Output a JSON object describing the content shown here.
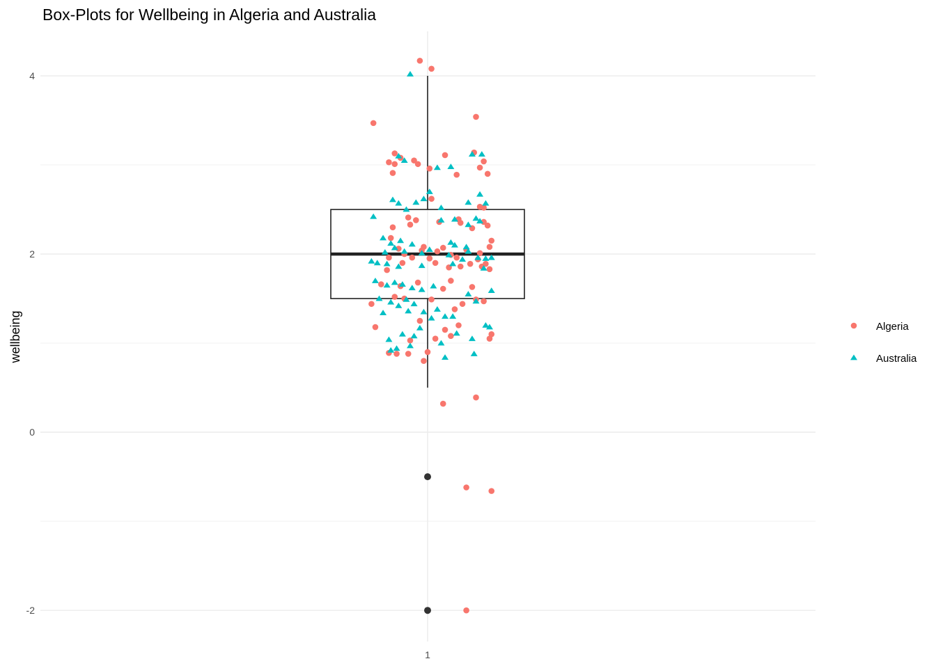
{
  "chart_data": {
    "type": "box",
    "title": "Box-Plots for Wellbeing in Algeria and Australia",
    "xlabel": "",
    "ylabel": "wellbeing",
    "x_tick_labels": [
      "1"
    ],
    "y_ticks": [
      -2,
      0,
      2,
      4
    ],
    "ylim": [
      -2.35,
      4.5
    ],
    "grid": true,
    "legend_position": "right",
    "box": {
      "q1": 1.5,
      "median": 2.0,
      "q3": 2.5,
      "whisker_low": 0.5,
      "whisker_high": 4.0,
      "outliers": [
        -0.5,
        -2.0
      ]
    },
    "series": [
      {
        "name": "Algeria",
        "color": "#F8766D",
        "shape": "circle",
        "points": [
          [
            0.96,
            4.17
          ],
          [
            1.02,
            4.08
          ],
          [
            0.72,
            3.47
          ],
          [
            1.25,
            3.54
          ],
          [
            0.83,
            3.13
          ],
          [
            0.86,
            3.08
          ],
          [
            0.8,
            3.03
          ],
          [
            0.83,
            3.01
          ],
          [
            0.93,
            3.05
          ],
          [
            0.95,
            3.01
          ],
          [
            1.01,
            2.96
          ],
          [
            1.09,
            3.11
          ],
          [
            1.24,
            3.14
          ],
          [
            1.29,
            3.04
          ],
          [
            1.27,
            2.97
          ],
          [
            1.31,
            2.9
          ],
          [
            0.82,
            2.91
          ],
          [
            1.15,
            2.89
          ],
          [
            1.02,
            2.62
          ],
          [
            1.27,
            2.53
          ],
          [
            1.29,
            2.52
          ],
          [
            0.82,
            2.3
          ],
          [
            0.9,
            2.41
          ],
          [
            0.91,
            2.33
          ],
          [
            0.94,
            2.38
          ],
          [
            1.06,
            2.36
          ],
          [
            1.16,
            2.39
          ],
          [
            1.17,
            2.35
          ],
          [
            1.23,
            2.29
          ],
          [
            1.29,
            2.36
          ],
          [
            1.31,
            2.32
          ],
          [
            1.33,
            2.15
          ],
          [
            0.81,
            2.18
          ],
          [
            0.85,
            2.06
          ],
          [
            0.98,
            2.08
          ],
          [
            1.05,
            2.03
          ],
          [
            1.08,
            2.07
          ],
          [
            1.12,
            1.99
          ],
          [
            1.2,
            2.05
          ],
          [
            1.27,
            2.01
          ],
          [
            1.32,
            2.08
          ],
          [
            0.8,
            1.96
          ],
          [
            0.88,
            2.0
          ],
          [
            0.92,
            1.96
          ],
          [
            0.97,
            2.04
          ],
          [
            1.01,
            1.95
          ],
          [
            1.15,
            1.96
          ],
          [
            1.26,
            1.94
          ],
          [
            0.79,
            1.82
          ],
          [
            0.87,
            1.9
          ],
          [
            1.04,
            1.9
          ],
          [
            1.11,
            1.85
          ],
          [
            1.17,
            1.86
          ],
          [
            1.22,
            1.89
          ],
          [
            1.28,
            1.86
          ],
          [
            1.3,
            1.89
          ],
          [
            1.32,
            1.83
          ],
          [
            0.76,
            1.66
          ],
          [
            0.86,
            1.64
          ],
          [
            0.95,
            1.68
          ],
          [
            1.08,
            1.61
          ],
          [
            1.12,
            1.7
          ],
          [
            1.23,
            1.63
          ],
          [
            0.71,
            1.44
          ],
          [
            0.83,
            1.52
          ],
          [
            0.88,
            1.5
          ],
          [
            1.02,
            1.49
          ],
          [
            1.14,
            1.38
          ],
          [
            1.18,
            1.44
          ],
          [
            1.25,
            1.49
          ],
          [
            1.29,
            1.47
          ],
          [
            0.73,
            1.18
          ],
          [
            0.96,
            1.25
          ],
          [
            1.09,
            1.15
          ],
          [
            1.16,
            1.2
          ],
          [
            1.32,
            1.05
          ],
          [
            1.33,
            1.1
          ],
          [
            0.91,
            1.03
          ],
          [
            1.04,
            1.05
          ],
          [
            1.12,
            1.08
          ],
          [
            0.8,
            0.89
          ],
          [
            0.84,
            0.88
          ],
          [
            0.9,
            0.88
          ],
          [
            0.98,
            0.8
          ],
          [
            1.0,
            0.9
          ],
          [
            1.08,
            0.32
          ],
          [
            1.25,
            0.39
          ],
          [
            1.2,
            -0.62
          ],
          [
            1.33,
            -0.66
          ],
          [
            1.2,
            -2.0
          ]
        ]
      },
      {
        "name": "Australia",
        "color": "#00BFC4",
        "shape": "triangle",
        "points": [
          [
            0.91,
            4.02
          ],
          [
            0.85,
            3.1
          ],
          [
            0.88,
            3.05
          ],
          [
            1.23,
            3.12
          ],
          [
            1.28,
            3.12
          ],
          [
            1.05,
            2.97
          ],
          [
            1.12,
            2.98
          ],
          [
            0.94,
            2.58
          ],
          [
            0.98,
            2.62
          ],
          [
            1.01,
            2.7
          ],
          [
            1.07,
            2.52
          ],
          [
            0.82,
            2.61
          ],
          [
            0.85,
            2.57
          ],
          [
            0.89,
            2.5
          ],
          [
            1.21,
            2.58
          ],
          [
            1.27,
            2.67
          ],
          [
            1.3,
            2.57
          ],
          [
            0.72,
            2.42
          ],
          [
            1.07,
            2.38
          ],
          [
            1.14,
            2.39
          ],
          [
            1.21,
            2.33
          ],
          [
            1.25,
            2.4
          ],
          [
            1.27,
            2.37
          ],
          [
            0.77,
            2.18
          ],
          [
            0.81,
            2.12
          ],
          [
            0.86,
            2.15
          ],
          [
            0.92,
            2.11
          ],
          [
            1.01,
            2.05
          ],
          [
            1.12,
            2.13
          ],
          [
            1.14,
            2.1
          ],
          [
            1.2,
            2.08
          ],
          [
            0.78,
            2.02
          ],
          [
            0.83,
            2.07
          ],
          [
            0.88,
            2.03
          ],
          [
            0.97,
            2.01
          ],
          [
            1.11,
            1.99
          ],
          [
            1.21,
            2.03
          ],
          [
            1.26,
            1.96
          ],
          [
            1.3,
            1.95
          ],
          [
            1.33,
            1.96
          ],
          [
            0.71,
            1.92
          ],
          [
            0.74,
            1.9
          ],
          [
            0.79,
            1.89
          ],
          [
            0.85,
            1.86
          ],
          [
            0.97,
            1.87
          ],
          [
            1.13,
            1.89
          ],
          [
            1.18,
            1.94
          ],
          [
            1.29,
            1.84
          ],
          [
            0.73,
            1.7
          ],
          [
            0.79,
            1.65
          ],
          [
            0.83,
            1.68
          ],
          [
            0.87,
            1.66
          ],
          [
            0.92,
            1.62
          ],
          [
            0.97,
            1.6
          ],
          [
            1.03,
            1.64
          ],
          [
            1.21,
            1.55
          ],
          [
            1.33,
            1.59
          ],
          [
            0.75,
            1.5
          ],
          [
            0.81,
            1.46
          ],
          [
            0.85,
            1.42
          ],
          [
            0.89,
            1.49
          ],
          [
            0.93,
            1.44
          ],
          [
            1.05,
            1.38
          ],
          [
            1.09,
            1.3
          ],
          [
            1.13,
            1.3
          ],
          [
            1.25,
            1.47
          ],
          [
            0.77,
            1.34
          ],
          [
            0.9,
            1.36
          ],
          [
            0.98,
            1.35
          ],
          [
            0.87,
            1.1
          ],
          [
            0.93,
            1.08
          ],
          [
            0.96,
            1.17
          ],
          [
            1.02,
            1.28
          ],
          [
            1.15,
            1.11
          ],
          [
            0.8,
            1.04
          ],
          [
            0.84,
            0.94
          ],
          [
            0.91,
            0.97
          ],
          [
            1.07,
            1.0
          ],
          [
            1.23,
            1.05
          ],
          [
            1.3,
            1.2
          ],
          [
            1.32,
            1.18
          ],
          [
            0.81,
            0.92
          ],
          [
            1.09,
            0.84
          ],
          [
            1.24,
            0.88
          ]
        ]
      }
    ]
  }
}
